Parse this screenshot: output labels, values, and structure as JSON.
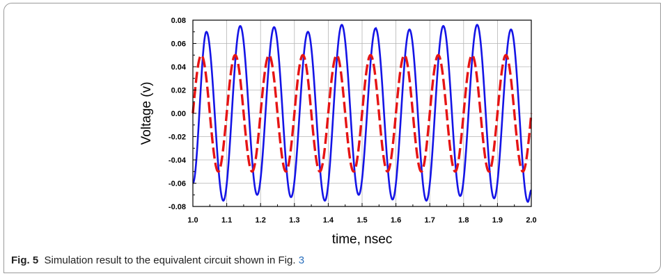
{
  "chart_data": {
    "type": "line",
    "title": "",
    "xlabel": "time, nsec",
    "ylabel": "Voltage (v)",
    "xlim": [
      1.0,
      2.0
    ],
    "ylim": [
      -0.08,
      0.08
    ],
    "x_ticks": [
      "1.0",
      "1.1",
      "1.2",
      "1.3",
      "1.4",
      "1.5",
      "1.6",
      "1.7",
      "1.8",
      "1.9",
      "2.0"
    ],
    "y_ticks": [
      "0.08",
      "0.06",
      "0.04",
      "0.02",
      "0.00",
      "-0.02",
      "-0.04",
      "-0.06",
      "-0.08"
    ],
    "grid": true,
    "legend": "none",
    "series": [
      {
        "style": "solid",
        "color": "#1414e6",
        "frequency_ghz": 10,
        "peaks": [
          {
            "x": 1.04,
            "y": 0.07
          },
          {
            "x": 1.14,
            "y": 0.075
          },
          {
            "x": 1.24,
            "y": 0.074
          },
          {
            "x": 1.34,
            "y": 0.07
          },
          {
            "x": 1.44,
            "y": 0.076
          },
          {
            "x": 1.54,
            "y": 0.073
          },
          {
            "x": 1.64,
            "y": 0.072
          },
          {
            "x": 1.74,
            "y": 0.075
          },
          {
            "x": 1.84,
            "y": 0.076
          },
          {
            "x": 1.94,
            "y": 0.072
          }
        ],
        "troughs": [
          {
            "x": 1.09,
            "y": -0.075
          },
          {
            "x": 1.19,
            "y": -0.07
          },
          {
            "x": 1.29,
            "y": -0.072
          },
          {
            "x": 1.39,
            "y": -0.075
          },
          {
            "x": 1.49,
            "y": -0.07
          },
          {
            "x": 1.59,
            "y": -0.074
          },
          {
            "x": 1.69,
            "y": -0.075
          },
          {
            "x": 1.79,
            "y": -0.071
          },
          {
            "x": 1.89,
            "y": -0.073
          },
          {
            "x": 1.99,
            "y": -0.076
          }
        ],
        "start": {
          "x": 1.0,
          "y": -0.06
        },
        "end": {
          "x": 2.0,
          "y": -0.066
        }
      },
      {
        "style": "dashed",
        "color": "#e61414",
        "frequency_ghz": 10,
        "amplitude": 0.05,
        "phase_deg": 0,
        "start": {
          "x": 1.0,
          "y": 0.0
        },
        "end": {
          "x": 2.0,
          "y": 0.0
        }
      }
    ]
  },
  "caption": {
    "label": "Fig. 5",
    "text": "Simulation result to the equivalent circuit shown in Fig.",
    "ref": "3"
  },
  "colors": {
    "axis": "#000000",
    "grid": "#b4b4b4",
    "frame": "#9a9a9a"
  }
}
